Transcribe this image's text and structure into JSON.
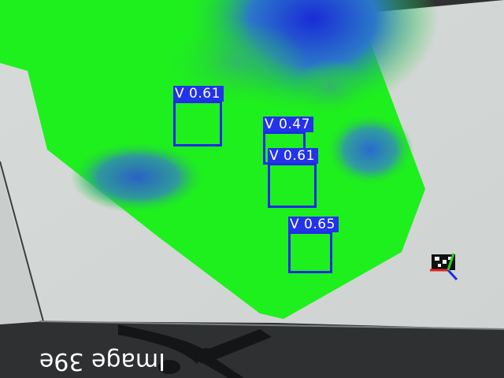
{
  "caption": {
    "text": "Image 39e"
  },
  "detections": [
    {
      "label": "V",
      "score": "0.61"
    },
    {
      "label": "V",
      "score": "0.47"
    },
    {
      "label": "V",
      "score": "0.61"
    },
    {
      "label": "V",
      "score": "0.65"
    }
  ],
  "colors": {
    "overlay_green": "#18f018",
    "overlay_blue": "#1f5fd0",
    "box_blue": "#1f2ae6",
    "desk": "#d8dcda",
    "floor": "#2e2f31"
  },
  "icons": [
    "fiducial-marker-icon",
    "axis-gizmo-icon"
  ]
}
